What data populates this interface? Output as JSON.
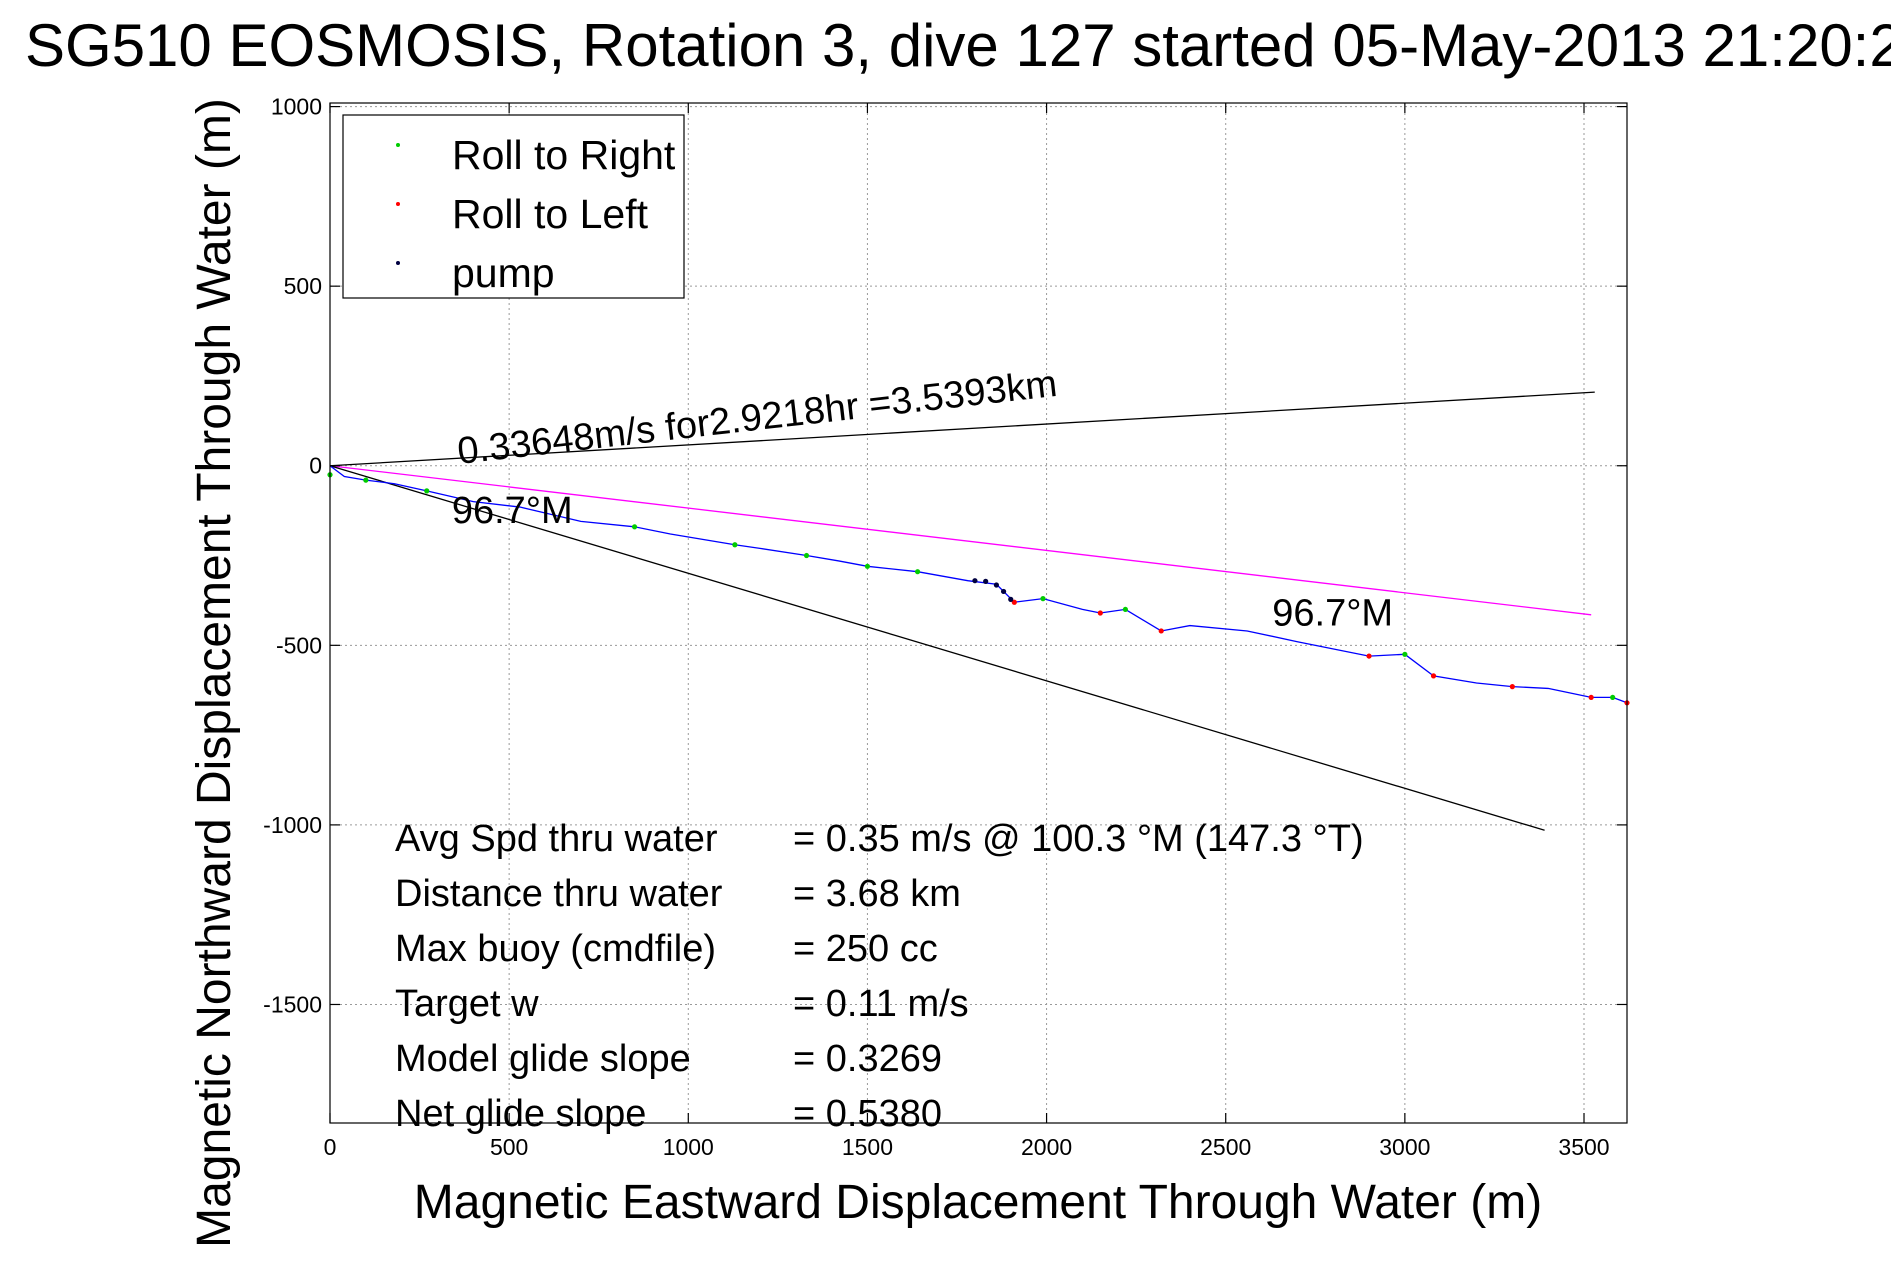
{
  "colors": {
    "track": "#0000ff",
    "roll_right": "#00cc00",
    "roll_left": "#ff0000",
    "pump": "#000040",
    "depth_avg_current": "#ff00ff",
    "bounds": "#000000",
    "grid": "#9a9a9a"
  },
  "chart_data": {
    "type": "line",
    "title": "SG510 EOSMOSIS, Rotation 3, dive 127 started 05-May-2013 21:20:2",
    "xlabel": "Magnetic Eastward Displacement Through Water (m)",
    "ylabel": "Magnetic Northward Displacement Through Water (m)",
    "xlim": [
      0,
      3620
    ],
    "ylim": [
      -1830,
      1010
    ],
    "xticks": [
      0,
      500,
      1000,
      1500,
      2000,
      2500,
      3000,
      3500
    ],
    "xtick_labels": [
      "0",
      "500",
      "1000",
      "1500",
      "2000",
      "2500",
      "3000",
      "3500"
    ],
    "yticks": [
      1000,
      500,
      0,
      -500,
      -1000,
      -1500
    ],
    "ytick_labels": [
      "1000",
      "500",
      "0",
      "-500",
      "-1000",
      "-1500"
    ],
    "grid": true,
    "legend_position": "top-left",
    "legend": [
      {
        "label": "Roll to Right",
        "color_key": "roll_right"
      },
      {
        "label": "Roll to Left",
        "color_key": "roll_left"
      },
      {
        "label": "pump",
        "color_key": "pump"
      }
    ],
    "series": [
      {
        "color_key": "track",
        "x": [
          0,
          40,
          100,
          180,
          270,
          400,
          530,
          700,
          850,
          950,
          1130,
          1200,
          1330,
          1420,
          1500,
          1640,
          1780,
          1860,
          1910,
          1990,
          2100,
          2150,
          2220,
          2320,
          2400,
          2560,
          2700,
          2900,
          3000,
          3080,
          3200,
          3300,
          3400,
          3520,
          3580,
          3620
        ],
        "y": [
          0,
          -30,
          -40,
          -50,
          -70,
          -100,
          -115,
          -155,
          -170,
          -190,
          -220,
          -230,
          -250,
          -265,
          -280,
          -295,
          -320,
          -330,
          -380,
          -370,
          -400,
          -410,
          -400,
          -460,
          -445,
          -460,
          -490,
          -530,
          -525,
          -585,
          -605,
          -615,
          -620,
          -645,
          -645,
          -660
        ]
      },
      {
        "name": "Roll to Right",
        "color_key": "roll_right",
        "marker": "point",
        "x": [
          0,
          100,
          270,
          850,
          1130,
          1330,
          1500,
          1640,
          1990,
          2220,
          3000,
          3580
        ],
        "y": [
          -25,
          -40,
          -70,
          -170,
          -220,
          -250,
          -280,
          -295,
          -370,
          -400,
          -525,
          -645
        ]
      },
      {
        "name": "Roll to Left",
        "color_key": "roll_left",
        "marker": "point",
        "x": [
          1910,
          2150,
          2320,
          2900,
          3080,
          3300,
          3520,
          3620
        ],
        "y": [
          -380,
          -410,
          -460,
          -530,
          -585,
          -615,
          -645,
          -660
        ]
      },
      {
        "name": "pump",
        "color_key": "pump",
        "marker": "point",
        "x": [
          1800,
          1830,
          1860,
          1880,
          1900
        ],
        "y": [
          -320,
          -322,
          -332,
          -350,
          -372
        ]
      }
    ],
    "reference_lines": [
      {
        "color_key": "depth_avg_current",
        "x": [
          0,
          3520
        ],
        "y": [
          0,
          -415
        ]
      },
      {
        "color_key": "bounds",
        "x": [
          0,
          3530
        ],
        "y": [
          0,
          205
        ]
      },
      {
        "color_key": "bounds",
        "x": [
          0,
          3390
        ],
        "y": [
          0,
          -1015
        ]
      }
    ],
    "annotations": [
      {
        "text": "0.33648m/s for2.9218hr =3.5393km",
        "x": 360,
        "y": 5,
        "rotate": -6.5
      },
      {
        "text": "96.7°M",
        "x": 340,
        "y": -160,
        "rotate": 0
      },
      {
        "text": "96.7°M",
        "x": 2630,
        "y": -445,
        "rotate": 0
      }
    ],
    "stats": [
      {
        "label": "Avg Spd thru water",
        "value": "=  0.35 m/s @ 100.3 °M (147.3 °T)"
      },
      {
        "label": "Distance thru water",
        "value": "=  3.68 km"
      },
      {
        "label": "Max buoy (cmdfile)",
        "value": "= 250 cc"
      },
      {
        "label": "Target w",
        "value": "= 0.11 m/s"
      },
      {
        "label": "Model glide slope",
        "value": "= 0.3269"
      },
      {
        "label": "Net glide slope",
        "value": "= 0.5380"
      }
    ]
  }
}
